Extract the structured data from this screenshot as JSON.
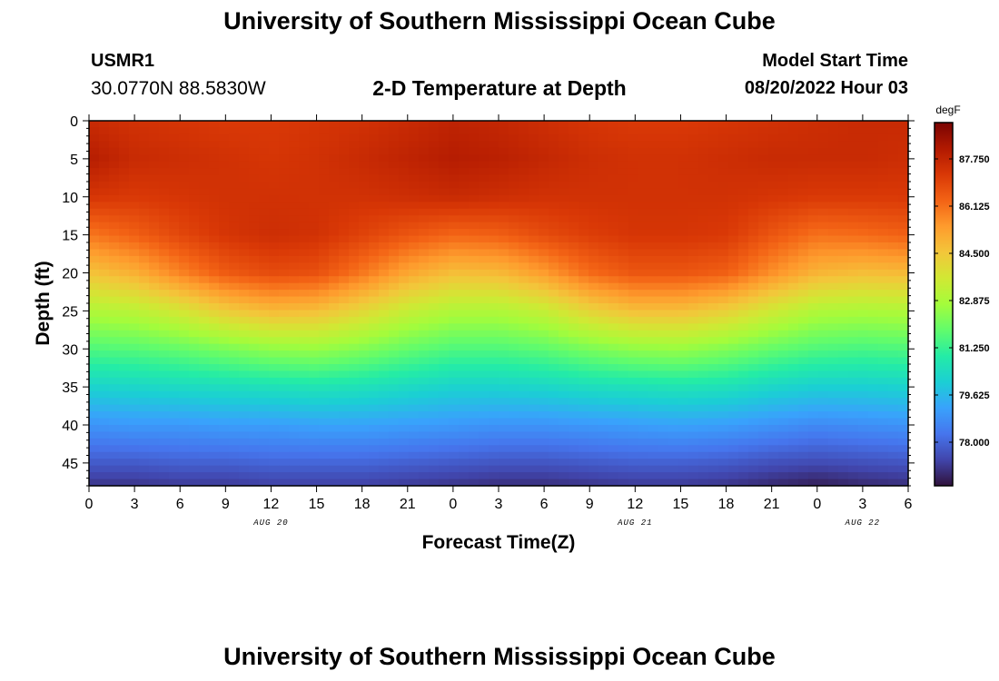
{
  "header": {
    "title": "University of Southern Mississippi Ocean Cube",
    "station_id": "USMR1",
    "coords": "30.0770N  88.5830W",
    "model_start_label": "Model Start Time",
    "model_start_value": "08/20/2022 Hour 03"
  },
  "footer": {
    "title": "University of Southern Mississippi Ocean Cube"
  },
  "colors": {
    "palette": [
      "#30123b",
      "#4145ab",
      "#4675ed",
      "#39a2fc",
      "#1bcfd4",
      "#24eca6",
      "#61fc6c",
      "#a4fc3b",
      "#d1e834",
      "#f3c63a",
      "#fe9b2d",
      "#f36315",
      "#d93806",
      "#b11901",
      "#7a0403"
    ]
  },
  "chart_data": {
    "type": "heatmap",
    "title": "2-D Temperature at Depth",
    "xlabel": "Forecast Time(Z)",
    "ylabel": "Depth (ft)",
    "x_ticks": [
      "0",
      "3",
      "6",
      "9",
      "12",
      "15",
      "18",
      "21",
      "0",
      "3",
      "6",
      "9",
      "12",
      "15",
      "18",
      "21",
      "0",
      "3",
      "6"
    ],
    "x_range_hours": [
      0,
      54
    ],
    "date_labels": [
      {
        "text": "AUG 20",
        "hour": 12
      },
      {
        "text": "AUG 21",
        "hour": 36
      },
      {
        "text": "AUG 22",
        "hour": 51
      }
    ],
    "y_ticks": [
      0,
      5,
      10,
      15,
      20,
      25,
      30,
      35,
      40,
      45
    ],
    "y_range": [
      0,
      48
    ],
    "colorbar": {
      "unit": "degF",
      "range": [
        76.5,
        89.0
      ],
      "ticks": [
        "87.750",
        "86.125",
        "84.500",
        "82.875",
        "81.250",
        "79.625",
        "78.000"
      ]
    },
    "hours": [
      0,
      3,
      6,
      9,
      12,
      15,
      18,
      21,
      24,
      27,
      30,
      33,
      36,
      39,
      42,
      45,
      48,
      51,
      54
    ],
    "depths": [
      0,
      5,
      10,
      15,
      20,
      25,
      30,
      35,
      40,
      45,
      48
    ],
    "values": [
      [
        87.6,
        87.4,
        87.3,
        87.2,
        87.2,
        87.3,
        87.4,
        87.6,
        87.8,
        87.7,
        87.5,
        87.3,
        87.2,
        87.2,
        87.3,
        87.4,
        87.5,
        87.6,
        87.6
      ],
      [
        88.0,
        87.6,
        87.5,
        87.4,
        87.3,
        87.4,
        87.6,
        87.8,
        88.0,
        87.9,
        87.7,
        87.5,
        87.4,
        87.4,
        87.5,
        87.6,
        87.6,
        87.6,
        87.5
      ],
      [
        87.3,
        87.2,
        87.3,
        87.4,
        87.4,
        87.4,
        87.4,
        87.5,
        87.6,
        87.5,
        87.4,
        87.4,
        87.4,
        87.4,
        87.4,
        87.3,
        87.2,
        87.2,
        87.2
      ],
      [
        86.0,
        86.4,
        86.9,
        87.3,
        87.5,
        87.4,
        87.0,
        86.6,
        86.3,
        86.4,
        86.8,
        87.1,
        87.3,
        87.3,
        87.2,
        86.6,
        86.1,
        86.2,
        86.4
      ],
      [
        84.6,
        85.0,
        85.8,
        86.5,
        86.8,
        86.7,
        86.0,
        85.2,
        84.7,
        84.8,
        85.4,
        86.2,
        86.6,
        86.6,
        86.4,
        85.6,
        84.9,
        84.7,
        84.8
      ],
      [
        83.0,
        83.2,
        83.7,
        84.4,
        84.8,
        84.7,
        84.1,
        83.4,
        83.0,
        83.0,
        83.4,
        84.2,
        84.7,
        84.7,
        84.3,
        83.6,
        83.0,
        82.9,
        83.0
      ],
      [
        81.6,
        81.7,
        81.9,
        82.2,
        82.5,
        82.6,
        82.3,
        81.9,
        81.6,
        81.6,
        81.8,
        82.2,
        82.5,
        82.6,
        82.3,
        81.9,
        81.6,
        81.5,
        81.6
      ],
      [
        80.2,
        80.3,
        80.4,
        80.5,
        80.6,
        80.7,
        80.6,
        80.4,
        80.2,
        80.2,
        80.3,
        80.5,
        80.6,
        80.7,
        80.6,
        80.3,
        80.1,
        80.1,
        80.2
      ],
      [
        78.9,
        79.0,
        79.0,
        79.1,
        79.1,
        79.2,
        79.2,
        79.1,
        79.0,
        78.9,
        78.9,
        79.0,
        79.1,
        79.2,
        79.1,
        78.9,
        78.7,
        78.8,
        78.9
      ],
      [
        77.8,
        77.8,
        77.9,
        77.9,
        78.0,
        78.0,
        78.0,
        77.9,
        77.8,
        77.7,
        77.7,
        77.8,
        77.9,
        77.9,
        77.8,
        77.6,
        77.5,
        77.6,
        77.7
      ],
      [
        77.1,
        77.1,
        77.2,
        77.2,
        77.3,
        77.3,
        77.3,
        77.2,
        77.1,
        77.0,
        77.0,
        77.1,
        77.2,
        77.2,
        77.1,
        76.9,
        76.7,
        76.9,
        77.0
      ]
    ]
  }
}
